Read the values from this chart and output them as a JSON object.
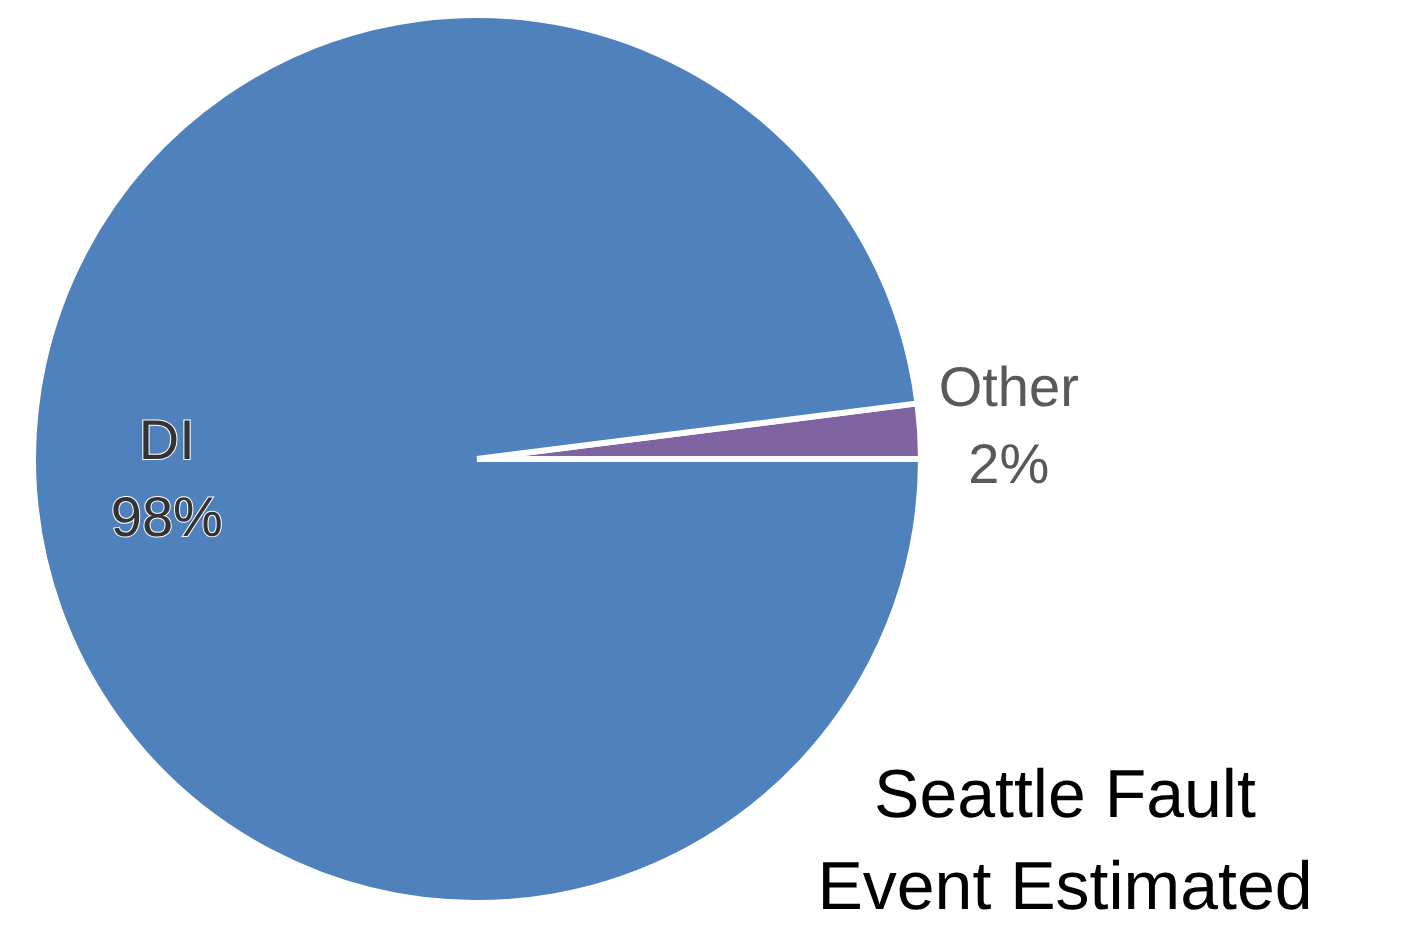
{
  "chart_data": {
    "type": "pie",
    "title": "Seattle Fault\nEvent Estimated",
    "categories": [
      "DI",
      "Other"
    ],
    "values": [
      98,
      2
    ],
    "colors": [
      "#4f81bd",
      "#8064a2"
    ],
    "value_labels": [
      "98%",
      "2%"
    ],
    "legend": false
  }
}
